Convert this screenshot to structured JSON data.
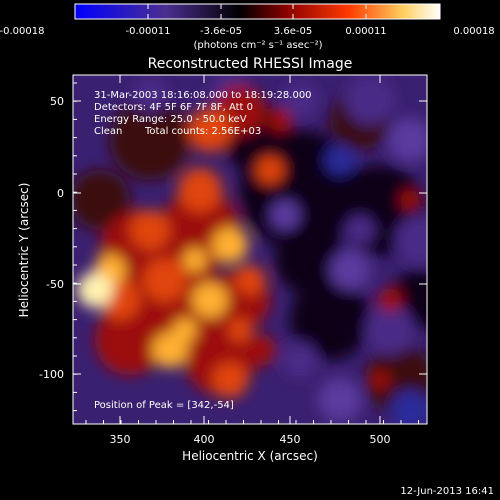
{
  "colorbar": {
    "ticks": [
      "-0.00018",
      "-0.00011",
      "-3.6e-05",
      "3.6e-05",
      "0.00011",
      "0.00018"
    ],
    "units": "(photons cm⁻² s⁻¹ asec⁻²)",
    "colors": [
      "#0000ff",
      "#4b2e8f",
      "#000000",
      "#8a0000",
      "#ff3a00",
      "#ffd060",
      "#ffffff"
    ]
  },
  "title": "Reconstructed RHESSI Image",
  "annotations": {
    "time": "31-Mar-2003 18:16:08.000 to 18:19:28.000",
    "detectors": "Detectors: 4F 5F 6F 7F 8F, Att 0",
    "energy": "Energy Range: 25.0 - 50.0 keV",
    "clean": "Clean",
    "counts": "Total counts: 2.56E+03",
    "peak": "Position of Peak = [342,-54]"
  },
  "axes": {
    "xlabel": "Heliocentric X (arcsec)",
    "ylabel": "Heliocentric Y (arcsec)",
    "x_range": [
      332,
      528
    ],
    "y_range": [
      -126,
      64
    ],
    "x_ticks": [
      350,
      400,
      450,
      500
    ],
    "y_ticks": [
      50,
      0,
      -50,
      -100
    ],
    "x_tick_labels": [
      "350",
      "400",
      "450",
      "500"
    ],
    "y_tick_labels": [
      "50",
      "0",
      "-50",
      "-100"
    ]
  },
  "footer_date": "12-Jun-2013 16:41"
}
